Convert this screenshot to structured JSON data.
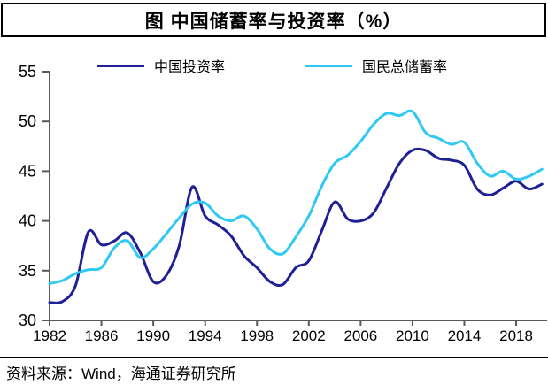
{
  "title": {
    "text": "图 中国储蓄率与投资率（%）"
  },
  "footer": {
    "source": "资料来源：Wind，海通证券研究所"
  },
  "chart_data": {
    "type": "line",
    "title": "图 中国储蓄率与投资率（%）",
    "xlabel": "",
    "ylabel": "",
    "xlim": [
      1982,
      2020.5
    ],
    "ylim": [
      30,
      55
    ],
    "x_ticks": [
      1982,
      1986,
      1990,
      1994,
      1998,
      2002,
      2006,
      2010,
      2014,
      2018
    ],
    "y_ticks": [
      30,
      35,
      40,
      45,
      50,
      55
    ],
    "grid": false,
    "legend_position": "top",
    "axis_color": "#595959",
    "x": [
      1982,
      1983,
      1984,
      1985,
      1986,
      1987,
      1988,
      1989,
      1990,
      1991,
      1992,
      1993,
      1994,
      1995,
      1996,
      1997,
      1998,
      1999,
      2000,
      2001,
      2002,
      2003,
      2004,
      2005,
      2006,
      2007,
      2008,
      2009,
      2010,
      2011,
      2012,
      2013,
      2014,
      2015,
      2016,
      2017,
      2018,
      2019,
      2020
    ],
    "series": [
      {
        "name": "中国投资率",
        "color": "#1F1F96",
        "values": [
          31.8,
          31.9,
          33.5,
          38.9,
          37.6,
          38.0,
          38.8,
          36.8,
          33.9,
          34.5,
          37.5,
          43.4,
          40.5,
          39.6,
          38.5,
          36.5,
          35.3,
          33.9,
          33.6,
          35.3,
          36.0,
          39.0,
          41.9,
          40.2,
          40.0,
          40.8,
          43.3,
          45.8,
          47.1,
          47.1,
          46.3,
          46.1,
          45.6,
          43.2,
          42.6,
          43.3,
          44.0,
          43.2,
          43.7
        ]
      },
      {
        "name": "国民总储蓄率",
        "color": "#30C9F3",
        "values": [
          33.7,
          34.0,
          34.7,
          35.1,
          35.3,
          37.3,
          38.0,
          36.3,
          37.2,
          38.7,
          40.3,
          41.7,
          41.8,
          40.5,
          40.0,
          40.5,
          39.2,
          37.2,
          36.7,
          38.4,
          40.5,
          43.5,
          45.8,
          46.6,
          48.0,
          49.7,
          50.8,
          50.6,
          51.0,
          48.9,
          48.3,
          47.7,
          47.9,
          45.8,
          44.5,
          45.0,
          44.2,
          44.5,
          45.2
        ]
      }
    ]
  }
}
